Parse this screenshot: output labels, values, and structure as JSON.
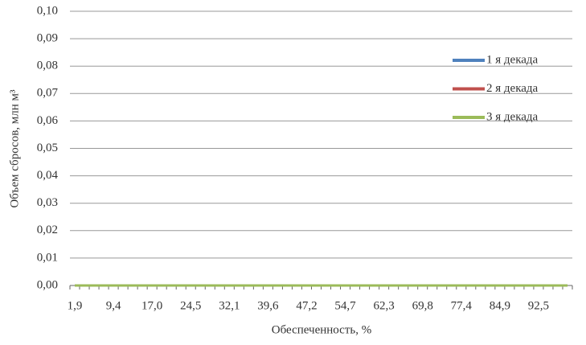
{
  "chart_data": {
    "type": "line",
    "x_label": "Обеспеченность, %",
    "y_label": "Объем сбросов, млн м³",
    "categories": [
      "1,9",
      null,
      null,
      null,
      "9,4",
      null,
      null,
      null,
      "17,0",
      null,
      null,
      null,
      "24,5",
      null,
      null,
      null,
      "32,1",
      null,
      null,
      null,
      "39,6",
      null,
      null,
      null,
      "47,2",
      null,
      null,
      null,
      "54,7",
      null,
      null,
      null,
      "62,3",
      null,
      null,
      null,
      "69,8",
      null,
      null,
      null,
      "77,4",
      null,
      null,
      null,
      "84,9",
      null,
      null,
      null,
      "92,5",
      null,
      null,
      null
    ],
    "series": [
      {
        "name": "1 я декада",
        "color": "#4f81bd",
        "values": [
          0,
          0,
          0,
          0,
          0,
          0,
          0,
          0,
          0,
          0,
          0,
          0,
          0,
          0,
          0,
          0,
          0,
          0,
          0,
          0,
          0,
          0,
          0,
          0,
          0,
          0,
          0,
          0,
          0,
          0,
          0,
          0,
          0,
          0,
          0,
          0,
          0,
          0,
          0,
          0,
          0,
          0,
          0,
          0,
          0,
          0,
          0,
          0,
          0,
          0,
          0,
          0
        ]
      },
      {
        "name": "2 я декада",
        "color": "#c0504d",
        "values": [
          0,
          0,
          0,
          0,
          0,
          0,
          0,
          0,
          0,
          0,
          0,
          0,
          0,
          0,
          0,
          0,
          0,
          0,
          0,
          0,
          0,
          0,
          0,
          0,
          0,
          0,
          0,
          0,
          0,
          0,
          0,
          0,
          0,
          0,
          0,
          0,
          0,
          0,
          0,
          0,
          0,
          0,
          0,
          0,
          0,
          0,
          0,
          0,
          0,
          0,
          0,
          0
        ]
      },
      {
        "name": "3 я декада",
        "color": "#9bbb59",
        "values": [
          0,
          0,
          0,
          0,
          0,
          0,
          0,
          0,
          0,
          0,
          0,
          0,
          0,
          0,
          0,
          0,
          0,
          0,
          0,
          0,
          0,
          0,
          0,
          0,
          0,
          0,
          0,
          0,
          0,
          0,
          0,
          0,
          0,
          0,
          0,
          0,
          0,
          0,
          0,
          0,
          0,
          0,
          0,
          0,
          0,
          0,
          0,
          0,
          0,
          0,
          0,
          0
        ]
      }
    ],
    "ylim": [
      0,
      0.1
    ],
    "yticks": [
      {
        "value": 0,
        "label": "0,00"
      },
      {
        "value": 0.01,
        "label": "0,01"
      },
      {
        "value": 0.02,
        "label": "0,02"
      },
      {
        "value": 0.03,
        "label": "0,03"
      },
      {
        "value": 0.04,
        "label": "0,04"
      },
      {
        "value": 0.05,
        "label": "0,05"
      },
      {
        "value": 0.06,
        "label": "0,06"
      },
      {
        "value": 0.07,
        "label": "0,07"
      },
      {
        "value": 0.08,
        "label": "0,08"
      },
      {
        "value": 0.09,
        "label": "0,09"
      },
      {
        "value": 0.1,
        "label": "0,10"
      }
    ],
    "grid": true,
    "legend": "right"
  }
}
